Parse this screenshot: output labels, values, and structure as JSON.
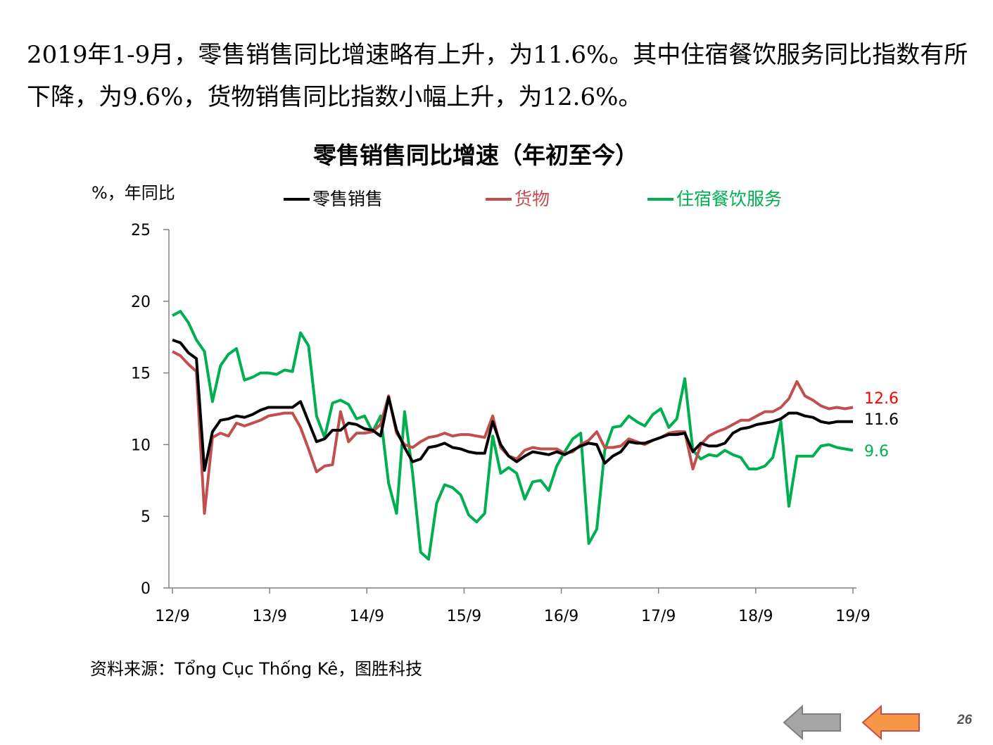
{
  "intro_text": "2019年1-9月，零售销售同比增速略有上升，为11.6%。其中住宿餐饮服务同比指数有所下降，为9.6%，货物销售同比指数小幅上升，为12.6%。",
  "source": "资料来源：Tổng Cục Thống Kê，图胜科技",
  "page_number": "26",
  "nav": {
    "back_icon": "left-arrow-gray",
    "forward_icon": "left-arrow-orange"
  },
  "chart_data": {
    "type": "line",
    "title": "零售销售同比增速（年初至今）",
    "ylabel": "%，年同比",
    "ylim": [
      0,
      25
    ],
    "yticks": [
      0,
      5,
      10,
      15,
      20,
      25
    ],
    "xtick_labels": [
      "12/9",
      "13/9",
      "14/9",
      "15/9",
      "16/9",
      "17/9",
      "18/9",
      "19/9"
    ],
    "x_start": "2012-09",
    "x_end": "2019-09",
    "legend_position": "top",
    "end_labels": [
      "12.6",
      "11.6",
      "9.6"
    ],
    "series": [
      {
        "name": "零售销售",
        "color": "#000000",
        "values": [
          17.3,
          17.1,
          16.4,
          16.0,
          8.2,
          10.9,
          11.7,
          11.8,
          12.0,
          11.9,
          12.1,
          12.4,
          12.6,
          12.6,
          12.6,
          12.6,
          13.0,
          11.6,
          10.2,
          10.4,
          11.0,
          11.0,
          11.5,
          11.4,
          11.1,
          11.0,
          10.6,
          13.3,
          11.0,
          9.8,
          8.8,
          9.0,
          9.8,
          9.9,
          10.1,
          9.8,
          9.7,
          9.5,
          9.4,
          9.4,
          11.6,
          10.0,
          9.2,
          8.8,
          9.2,
          9.5,
          9.4,
          9.3,
          9.5,
          9.3,
          9.6,
          9.9,
          10.1,
          10.0,
          8.7,
          9.2,
          9.5,
          10.2,
          10.1,
          10.1,
          10.3,
          10.5,
          10.7,
          10.7,
          10.8,
          9.5,
          10.1,
          9.9,
          9.9,
          10.1,
          10.8,
          11.1,
          11.2,
          11.4,
          11.5,
          11.6,
          11.8,
          12.2,
          12.2,
          12.0,
          11.9,
          11.6,
          11.5,
          11.6,
          11.6,
          11.6
        ]
      },
      {
        "name": "货物",
        "color": "#c0504d",
        "values": [
          16.5,
          16.2,
          15.6,
          15.1,
          5.2,
          10.5,
          10.8,
          10.6,
          11.5,
          11.3,
          11.5,
          11.7,
          12.0,
          12.1,
          12.2,
          12.2,
          11.2,
          9.7,
          8.1,
          8.5,
          8.6,
          12.3,
          10.2,
          10.8,
          10.8,
          10.9,
          11.4,
          13.4,
          10.8,
          10.0,
          9.8,
          10.2,
          10.5,
          10.6,
          10.8,
          10.6,
          10.7,
          10.7,
          10.6,
          10.5,
          12.0,
          9.8,
          9.2,
          9.0,
          9.6,
          9.8,
          9.7,
          9.7,
          9.7,
          9.4,
          9.5,
          10.0,
          10.3,
          10.9,
          9.8,
          9.8,
          9.9,
          10.4,
          10.2,
          10.0,
          10.3,
          10.5,
          10.8,
          10.9,
          10.9,
          8.3,
          10.0,
          10.6,
          10.9,
          11.1,
          11.4,
          11.7,
          11.7,
          12.0,
          12.3,
          12.3,
          12.6,
          13.2,
          14.4,
          13.4,
          13.1,
          12.7,
          12.5,
          12.6,
          12.5,
          12.6
        ]
      },
      {
        "name": "住宿餐饮服务",
        "color": "#00b050",
        "values": [
          19.0,
          19.3,
          18.5,
          17.3,
          16.5,
          13.0,
          15.5,
          16.3,
          16.7,
          14.5,
          14.7,
          15.0,
          15.0,
          14.9,
          15.2,
          15.1,
          17.8,
          16.9,
          12.0,
          10.5,
          12.9,
          13.1,
          12.8,
          11.8,
          12.0,
          10.9,
          12.0,
          7.3,
          5.2,
          12.3,
          8.0,
          2.5,
          2.0,
          5.9,
          7.2,
          7.0,
          6.5,
          5.1,
          4.6,
          5.2,
          10.6,
          8.0,
          8.4,
          8.0,
          6.2,
          7.4,
          7.5,
          6.8,
          8.5,
          9.5,
          10.4,
          10.8,
          3.1,
          4.1,
          9.6,
          11.2,
          11.3,
          12.0,
          11.6,
          11.3,
          12.1,
          12.5,
          11.2,
          11.8,
          14.6,
          9.6,
          9.0,
          9.3,
          9.2,
          9.6,
          9.3,
          9.1,
          8.3,
          8.3,
          8.5,
          9.1,
          11.6,
          5.7,
          9.2,
          9.2,
          9.2,
          9.9,
          10.0,
          9.8,
          9.7,
          9.6
        ]
      }
    ]
  }
}
